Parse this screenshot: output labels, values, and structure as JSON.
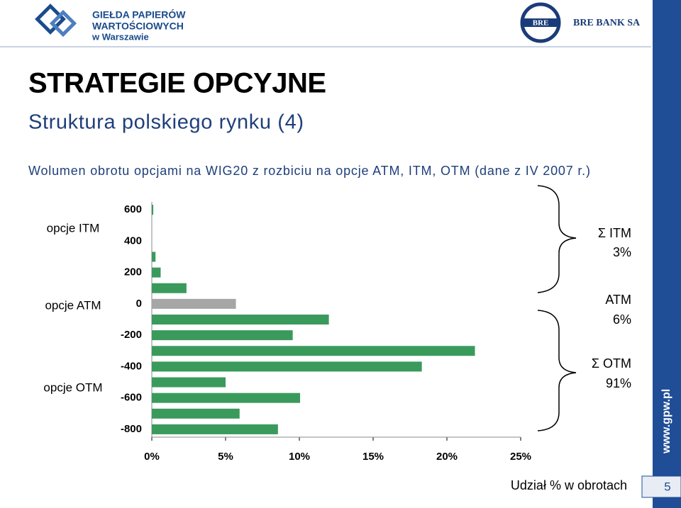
{
  "header": {
    "logo_left": [
      "GIEŁDA PAPIERÓW",
      "WARTOŚCIOWYCH",
      "w Warszawie"
    ],
    "logo_right": "BRE BANK SA"
  },
  "title": "STRATEGIE OPCYJNE",
  "subtitle": "Struktura polskiego rynku (4)",
  "description": "Wolumen obrotu opcjami na WIG20 z rozbiciu na opcje ATM, ITM, OTM (dane z IV 2007 r.)",
  "chart_data": {
    "type": "bar",
    "orientation": "horizontal",
    "strikes": [
      600,
      300,
      200,
      100,
      0,
      -100,
      -200,
      -300,
      -400,
      -500,
      -600,
      -700,
      -800
    ],
    "values": [
      0.1,
      0.25,
      0.6,
      2.35,
      5.7,
      12.0,
      9.55,
      21.9,
      18.3,
      5.0,
      10.05,
      5.95,
      8.55
    ],
    "colors": [
      "#3a9a5c",
      "#3a9a5c",
      "#3a9a5c",
      "#3a9a5c",
      "#a6a6a6",
      "#3a9a5c",
      "#3a9a5c",
      "#3a9a5c",
      "#3a9a5c",
      "#3a9a5c",
      "#3a9a5c",
      "#3a9a5c",
      "#3a9a5c"
    ],
    "xlim": [
      0,
      25
    ],
    "xticks": [
      {
        "value": 0,
        "label": "0%"
      },
      {
        "value": 5,
        "label": "5%"
      },
      {
        "value": 10,
        "label": "10%"
      },
      {
        "value": 15,
        "label": "15%"
      },
      {
        "value": 20,
        "label": "20%"
      },
      {
        "value": 25,
        "label": "25%"
      }
    ],
    "ylim": [
      -850,
      650
    ],
    "yticks": [
      600,
      400,
      200,
      0,
      -200,
      -400,
      -600,
      -800
    ],
    "xlabel": "Udział % w obrotach"
  },
  "group_labels": [
    "opcje ITM",
    "opcje ATM",
    "opcje OTM"
  ],
  "summary": [
    {
      "label": "Σ ITM",
      "share": "3%"
    },
    {
      "label": "ATM",
      "share": "6%"
    },
    {
      "label": "Σ OTM",
      "share": "91%"
    }
  ],
  "sidebar": {
    "url": "www.gpw.pl",
    "page": "5"
  }
}
